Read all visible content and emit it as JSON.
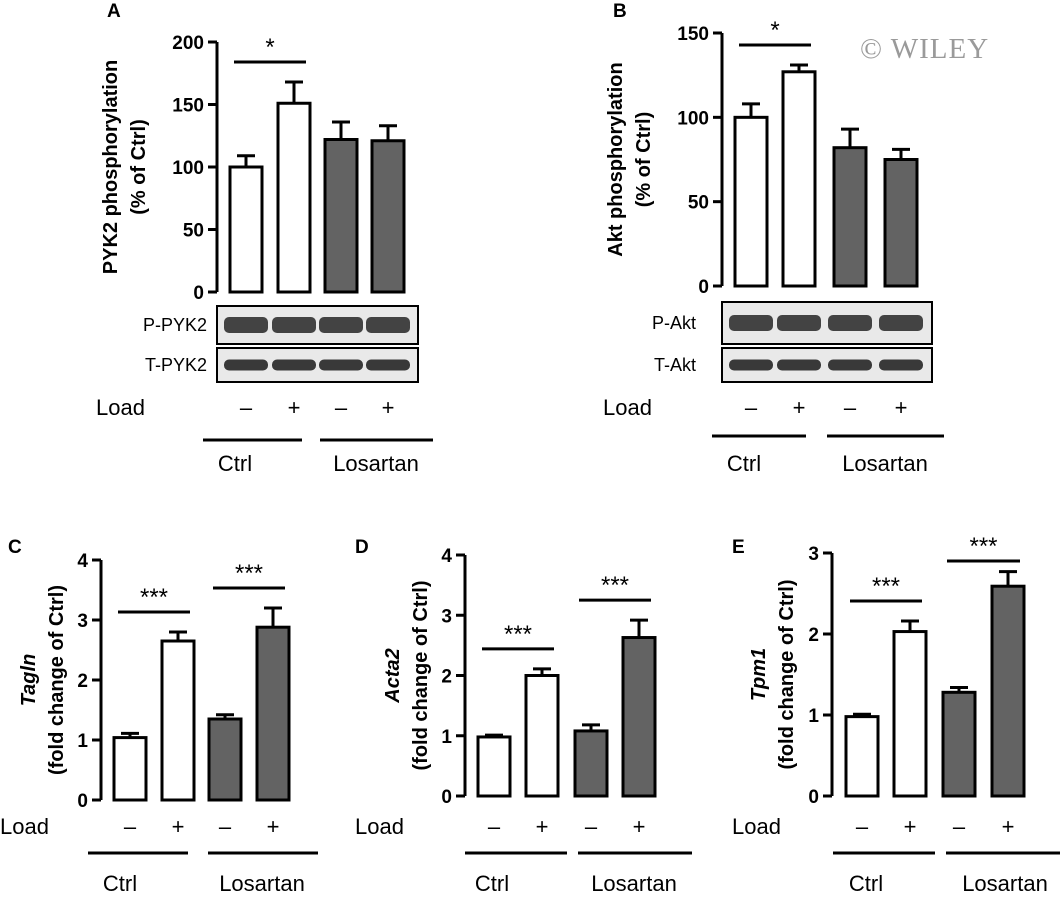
{
  "watermark": "© WILEY",
  "labels": {
    "load": "Load",
    "minus": "–",
    "plus": "+",
    "ctrl": "Ctrl",
    "losartan": "Losartan"
  },
  "colors": {
    "ctrl_bar": "#ffffff",
    "losartan_bar": "#636363",
    "blot_bg": "#e9e9e9"
  },
  "chart_data": [
    {
      "id": "A",
      "type": "bar",
      "panel_label": "A",
      "ylabel_lines": [
        "PYK2 phosphorylation",
        "(% of Ctrl)"
      ],
      "ylabel_italic_first": false,
      "ylim": [
        0,
        200
      ],
      "yticks": [
        0,
        50,
        100,
        150,
        200
      ],
      "categories": [
        "Ctrl –",
        "Ctrl +",
        "Losartan –",
        "Losartan +"
      ],
      "values": [
        100,
        151,
        122,
        121
      ],
      "errors": [
        9,
        17,
        14,
        12
      ],
      "significance": [
        {
          "bars": [
            0,
            1
          ],
          "label": "*"
        }
      ],
      "blots": [
        "P-PYK2",
        "T-PYK2"
      ]
    },
    {
      "id": "B",
      "type": "bar",
      "panel_label": "B",
      "ylabel_lines": [
        "Akt phosphorylation",
        "(% of Ctrl)"
      ],
      "ylabel_italic_first": false,
      "ylim": [
        0,
        150
      ],
      "yticks": [
        0,
        50,
        100,
        150
      ],
      "categories": [
        "Ctrl –",
        "Ctrl +",
        "Losartan –",
        "Losartan +"
      ],
      "values": [
        100,
        127,
        82,
        75
      ],
      "errors": [
        8,
        4,
        11,
        6
      ],
      "significance": [
        {
          "bars": [
            0,
            1
          ],
          "label": "*"
        }
      ],
      "blots": [
        "P-Akt",
        "T-Akt"
      ]
    },
    {
      "id": "C",
      "type": "bar",
      "panel_label": "C",
      "ylabel_lines": [
        "Tagln",
        "(fold change of Ctrl)"
      ],
      "ylabel_italic_first": true,
      "ylim": [
        0,
        4
      ],
      "yticks": [
        0,
        1,
        2,
        3,
        4
      ],
      "categories": [
        "Ctrl –",
        "Ctrl +",
        "Losartan –",
        "Losartan +"
      ],
      "values": [
        1.04,
        2.65,
        1.35,
        2.88
      ],
      "errors": [
        0.07,
        0.15,
        0.07,
        0.32
      ],
      "significance": [
        {
          "bars": [
            0,
            1
          ],
          "label": "***"
        },
        {
          "bars": [
            2,
            3
          ],
          "label": "***"
        }
      ],
      "blots": []
    },
    {
      "id": "D",
      "type": "bar",
      "panel_label": "D",
      "ylabel_lines": [
        "Acta2",
        "(fold change of Ctrl)"
      ],
      "ylabel_italic_first": true,
      "ylim": [
        0,
        4
      ],
      "yticks": [
        0,
        1,
        2,
        3,
        4
      ],
      "categories": [
        "Ctrl –",
        "Ctrl +",
        "Losartan –",
        "Losartan +"
      ],
      "values": [
        0.98,
        2.0,
        1.08,
        2.63
      ],
      "errors": [
        0.03,
        0.11,
        0.1,
        0.29
      ],
      "significance": [
        {
          "bars": [
            0,
            1
          ],
          "label": "***"
        },
        {
          "bars": [
            2,
            3
          ],
          "label": "***"
        }
      ],
      "blots": []
    },
    {
      "id": "E",
      "type": "bar",
      "panel_label": "E",
      "ylabel_lines": [
        "Tpm1",
        "(fold change of Ctrl)"
      ],
      "ylabel_italic_first": true,
      "ylim": [
        0,
        3
      ],
      "yticks": [
        0,
        1,
        2,
        3
      ],
      "categories": [
        "Ctrl –",
        "Ctrl +",
        "Losartan –",
        "Losartan +"
      ],
      "values": [
        0.98,
        2.03,
        1.28,
        2.59
      ],
      "errors": [
        0.03,
        0.13,
        0.06,
        0.18
      ],
      "significance": [
        {
          "bars": [
            0,
            1
          ],
          "label": "***"
        },
        {
          "bars": [
            2,
            3
          ],
          "label": "***"
        }
      ],
      "blots": []
    }
  ]
}
